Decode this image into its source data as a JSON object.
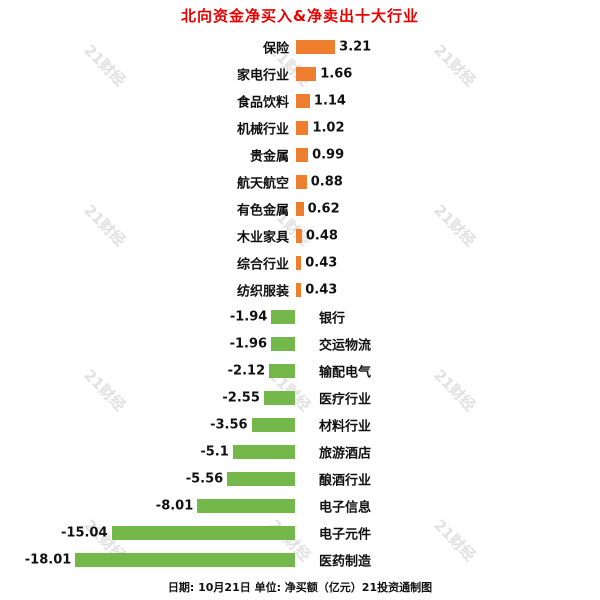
{
  "title": "北向资金净买入&净卖出十大行业",
  "caption": "日期: 10月21日 单位: 净买额（亿元）21投资通制图",
  "watermark": "21财经",
  "colors": {
    "title": "#e60000",
    "positive": "#ee7e2d",
    "negative": "#74b74a"
  },
  "chart_data": {
    "type": "bar",
    "orientation": "horizontal-diverging",
    "title": "北向资金净买入&净卖出十大行业",
    "unit": "净买额（亿元）",
    "date": "10月21日",
    "source": "21投资通制图",
    "categories": [
      "保险",
      "家电行业",
      "食品饮料",
      "机械行业",
      "贵金属",
      "航天航空",
      "有色金属",
      "木业家具",
      "综合行业",
      "纺织服装",
      "银行",
      "交运物流",
      "输配电气",
      "医疗行业",
      "材料行业",
      "旅游酒店",
      "酿酒行业",
      "电子信息",
      "电子元件",
      "医药制造"
    ],
    "values": [
      3.21,
      1.66,
      1.14,
      1.02,
      0.99,
      0.88,
      0.62,
      0.48,
      0.43,
      0.43,
      -1.94,
      -1.96,
      -2.12,
      -2.55,
      -3.56,
      -5.1,
      -5.56,
      -8.01,
      -15.04,
      -18.01
    ],
    "xlim": [
      -18.01,
      3.21
    ],
    "grid": false,
    "legend": "none"
  }
}
